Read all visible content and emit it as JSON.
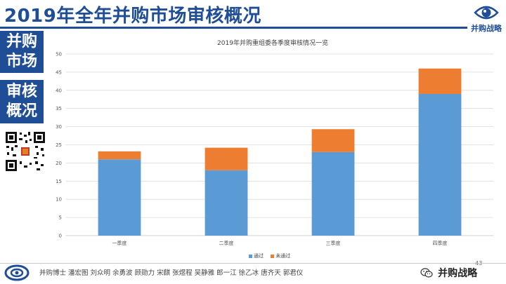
{
  "header": {
    "title": "2019年全年并购市场审核概况",
    "logo_text": "并购战略"
  },
  "side_panel": {
    "box1": [
      "并购",
      "市场"
    ],
    "box2": [
      "审核",
      "概况"
    ]
  },
  "colors": {
    "brand_blue": "#1f4e96",
    "pass_blue": "#5b9bd5",
    "fail_orange": "#ed7d31"
  },
  "chart_data": {
    "type": "bar",
    "stacked": true,
    "title": "2019年并购重组委各季度审核情况一览",
    "categories": [
      "一季度",
      "二季度",
      "三季度",
      "四季度"
    ],
    "series": [
      {
        "name": "通过",
        "values": [
          21,
          18,
          23,
          39
        ],
        "color": "#5b9bd5"
      },
      {
        "name": "未通过",
        "values": [
          2.2,
          6.2,
          6.3,
          7
        ],
        "color": "#ed7d31"
      }
    ],
    "ylim": [
      0,
      50
    ],
    "yticks": [
      0,
      5,
      10,
      15,
      20,
      25,
      30,
      35,
      40,
      45,
      50
    ],
    "grid": true,
    "legend": "bottom-center"
  },
  "page_number": "43",
  "footer": {
    "names": "并购博士  潘宏图  刘众明  余勇波  顾勋力  宋麒  张煜程  吴静雅  郎一江  徐乙冰  唐齐天  郭君仪",
    "wechat_label": "并购战略"
  }
}
